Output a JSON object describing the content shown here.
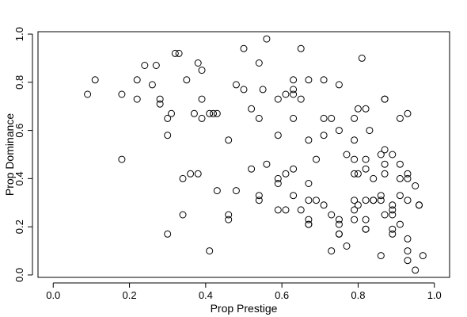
{
  "chart_data": {
    "type": "scatter",
    "xlabel": "Prop Prestige",
    "ylabel": "Prop Dominance",
    "xlim": [
      -0.04,
      1.04
    ],
    "ylim": [
      -0.01,
      1.01
    ],
    "xticks": [
      "0.0",
      "0.2",
      "0.4",
      "0.6",
      "0.8",
      "1.0"
    ],
    "yticks": [
      "0.0",
      "0.2",
      "0.4",
      "0.6",
      "0.8",
      "1.0"
    ],
    "grid": false,
    "points": [
      [
        0.09,
        0.75
      ],
      [
        0.11,
        0.81
      ],
      [
        0.18,
        0.75
      ],
      [
        0.18,
        0.48
      ],
      [
        0.22,
        0.81
      ],
      [
        0.22,
        0.73
      ],
      [
        0.24,
        0.87
      ],
      [
        0.26,
        0.79
      ],
      [
        0.27,
        0.87
      ],
      [
        0.28,
        0.73
      ],
      [
        0.28,
        0.71
      ],
      [
        0.3,
        0.65
      ],
      [
        0.3,
        0.58
      ],
      [
        0.3,
        0.17
      ],
      [
        0.31,
        0.67
      ],
      [
        0.32,
        0.92
      ],
      [
        0.33,
        0.92
      ],
      [
        0.34,
        0.4
      ],
      [
        0.34,
        0.25
      ],
      [
        0.35,
        0.81
      ],
      [
        0.36,
        0.42
      ],
      [
        0.37,
        0.67
      ],
      [
        0.38,
        0.42
      ],
      [
        0.38,
        0.88
      ],
      [
        0.39,
        0.85
      ],
      [
        0.39,
        0.73
      ],
      [
        0.39,
        0.65
      ],
      [
        0.41,
        0.67
      ],
      [
        0.42,
        0.67
      ],
      [
        0.43,
        0.67
      ],
      [
        0.43,
        0.35
      ],
      [
        0.41,
        0.1
      ],
      [
        0.46,
        0.56
      ],
      [
        0.46,
        0.25
      ],
      [
        0.46,
        0.23
      ],
      [
        0.48,
        0.79
      ],
      [
        0.48,
        0.35
      ],
      [
        0.5,
        0.94
      ],
      [
        0.5,
        0.77
      ],
      [
        0.52,
        0.69
      ],
      [
        0.52,
        0.44
      ],
      [
        0.54,
        0.88
      ],
      [
        0.54,
        0.65
      ],
      [
        0.54,
        0.33
      ],
      [
        0.54,
        0.31
      ],
      [
        0.55,
        0.77
      ],
      [
        0.56,
        0.98
      ],
      [
        0.56,
        0.46
      ],
      [
        0.59,
        0.73
      ],
      [
        0.59,
        0.58
      ],
      [
        0.59,
        0.4
      ],
      [
        0.59,
        0.38
      ],
      [
        0.59,
        0.27
      ],
      [
        0.61,
        0.75
      ],
      [
        0.61,
        0.42
      ],
      [
        0.61,
        0.27
      ],
      [
        0.63,
        0.81
      ],
      [
        0.63,
        0.77
      ],
      [
        0.63,
        0.75
      ],
      [
        0.63,
        0.65
      ],
      [
        0.63,
        0.44
      ],
      [
        0.63,
        0.33
      ],
      [
        0.65,
        0.94
      ],
      [
        0.65,
        0.73
      ],
      [
        0.65,
        0.27
      ],
      [
        0.67,
        0.81
      ],
      [
        0.67,
        0.56
      ],
      [
        0.67,
        0.38
      ],
      [
        0.67,
        0.31
      ],
      [
        0.67,
        0.23
      ],
      [
        0.67,
        0.21
      ],
      [
        0.67,
        0.21
      ],
      [
        0.69,
        0.48
      ],
      [
        0.69,
        0.31
      ],
      [
        0.71,
        0.81
      ],
      [
        0.71,
        0.65
      ],
      [
        0.71,
        0.58
      ],
      [
        0.71,
        0.29
      ],
      [
        0.73,
        0.65
      ],
      [
        0.73,
        0.25
      ],
      [
        0.73,
        0.1
      ],
      [
        0.75,
        0.79
      ],
      [
        0.75,
        0.6
      ],
      [
        0.75,
        0.23
      ],
      [
        0.75,
        0.21
      ],
      [
        0.75,
        0.17
      ],
      [
        0.75,
        0.17
      ],
      [
        0.77,
        0.5
      ],
      [
        0.77,
        0.12
      ],
      [
        0.79,
        0.65
      ],
      [
        0.79,
        0.56
      ],
      [
        0.79,
        0.48
      ],
      [
        0.79,
        0.42
      ],
      [
        0.79,
        0.31
      ],
      [
        0.79,
        0.27
      ],
      [
        0.79,
        0.23
      ],
      [
        0.8,
        0.69
      ],
      [
        0.8,
        0.42
      ],
      [
        0.8,
        0.29
      ],
      [
        0.81,
        0.9
      ],
      [
        0.82,
        0.69
      ],
      [
        0.82,
        0.48
      ],
      [
        0.82,
        0.44
      ],
      [
        0.82,
        0.31
      ],
      [
        0.82,
        0.23
      ],
      [
        0.82,
        0.19
      ],
      [
        0.82,
        0.19
      ],
      [
        0.83,
        0.6
      ],
      [
        0.84,
        0.4
      ],
      [
        0.84,
        0.31
      ],
      [
        0.84,
        0.31
      ],
      [
        0.86,
        0.5
      ],
      [
        0.86,
        0.33
      ],
      [
        0.86,
        0.31
      ],
      [
        0.86,
        0.08
      ],
      [
        0.87,
        0.73
      ],
      [
        0.87,
        0.73
      ],
      [
        0.87,
        0.52
      ],
      [
        0.87,
        0.46
      ],
      [
        0.87,
        0.42
      ],
      [
        0.87,
        0.25
      ],
      [
        0.89,
        0.5
      ],
      [
        0.89,
        0.29
      ],
      [
        0.89,
        0.27
      ],
      [
        0.89,
        0.25
      ],
      [
        0.89,
        0.19
      ],
      [
        0.89,
        0.17
      ],
      [
        0.91,
        0.65
      ],
      [
        0.91,
        0.46
      ],
      [
        0.91,
        0.4
      ],
      [
        0.91,
        0.33
      ],
      [
        0.91,
        0.21
      ],
      [
        0.93,
        0.67
      ],
      [
        0.93,
        0.42
      ],
      [
        0.93,
        0.4
      ],
      [
        0.93,
        0.31
      ],
      [
        0.93,
        0.15
      ],
      [
        0.93,
        0.1
      ],
      [
        0.93,
        0.06
      ],
      [
        0.95,
        0.37
      ],
      [
        0.95,
        0.02
      ],
      [
        0.96,
        0.29
      ],
      [
        0.96,
        0.29
      ],
      [
        0.97,
        0.08
      ]
    ]
  }
}
